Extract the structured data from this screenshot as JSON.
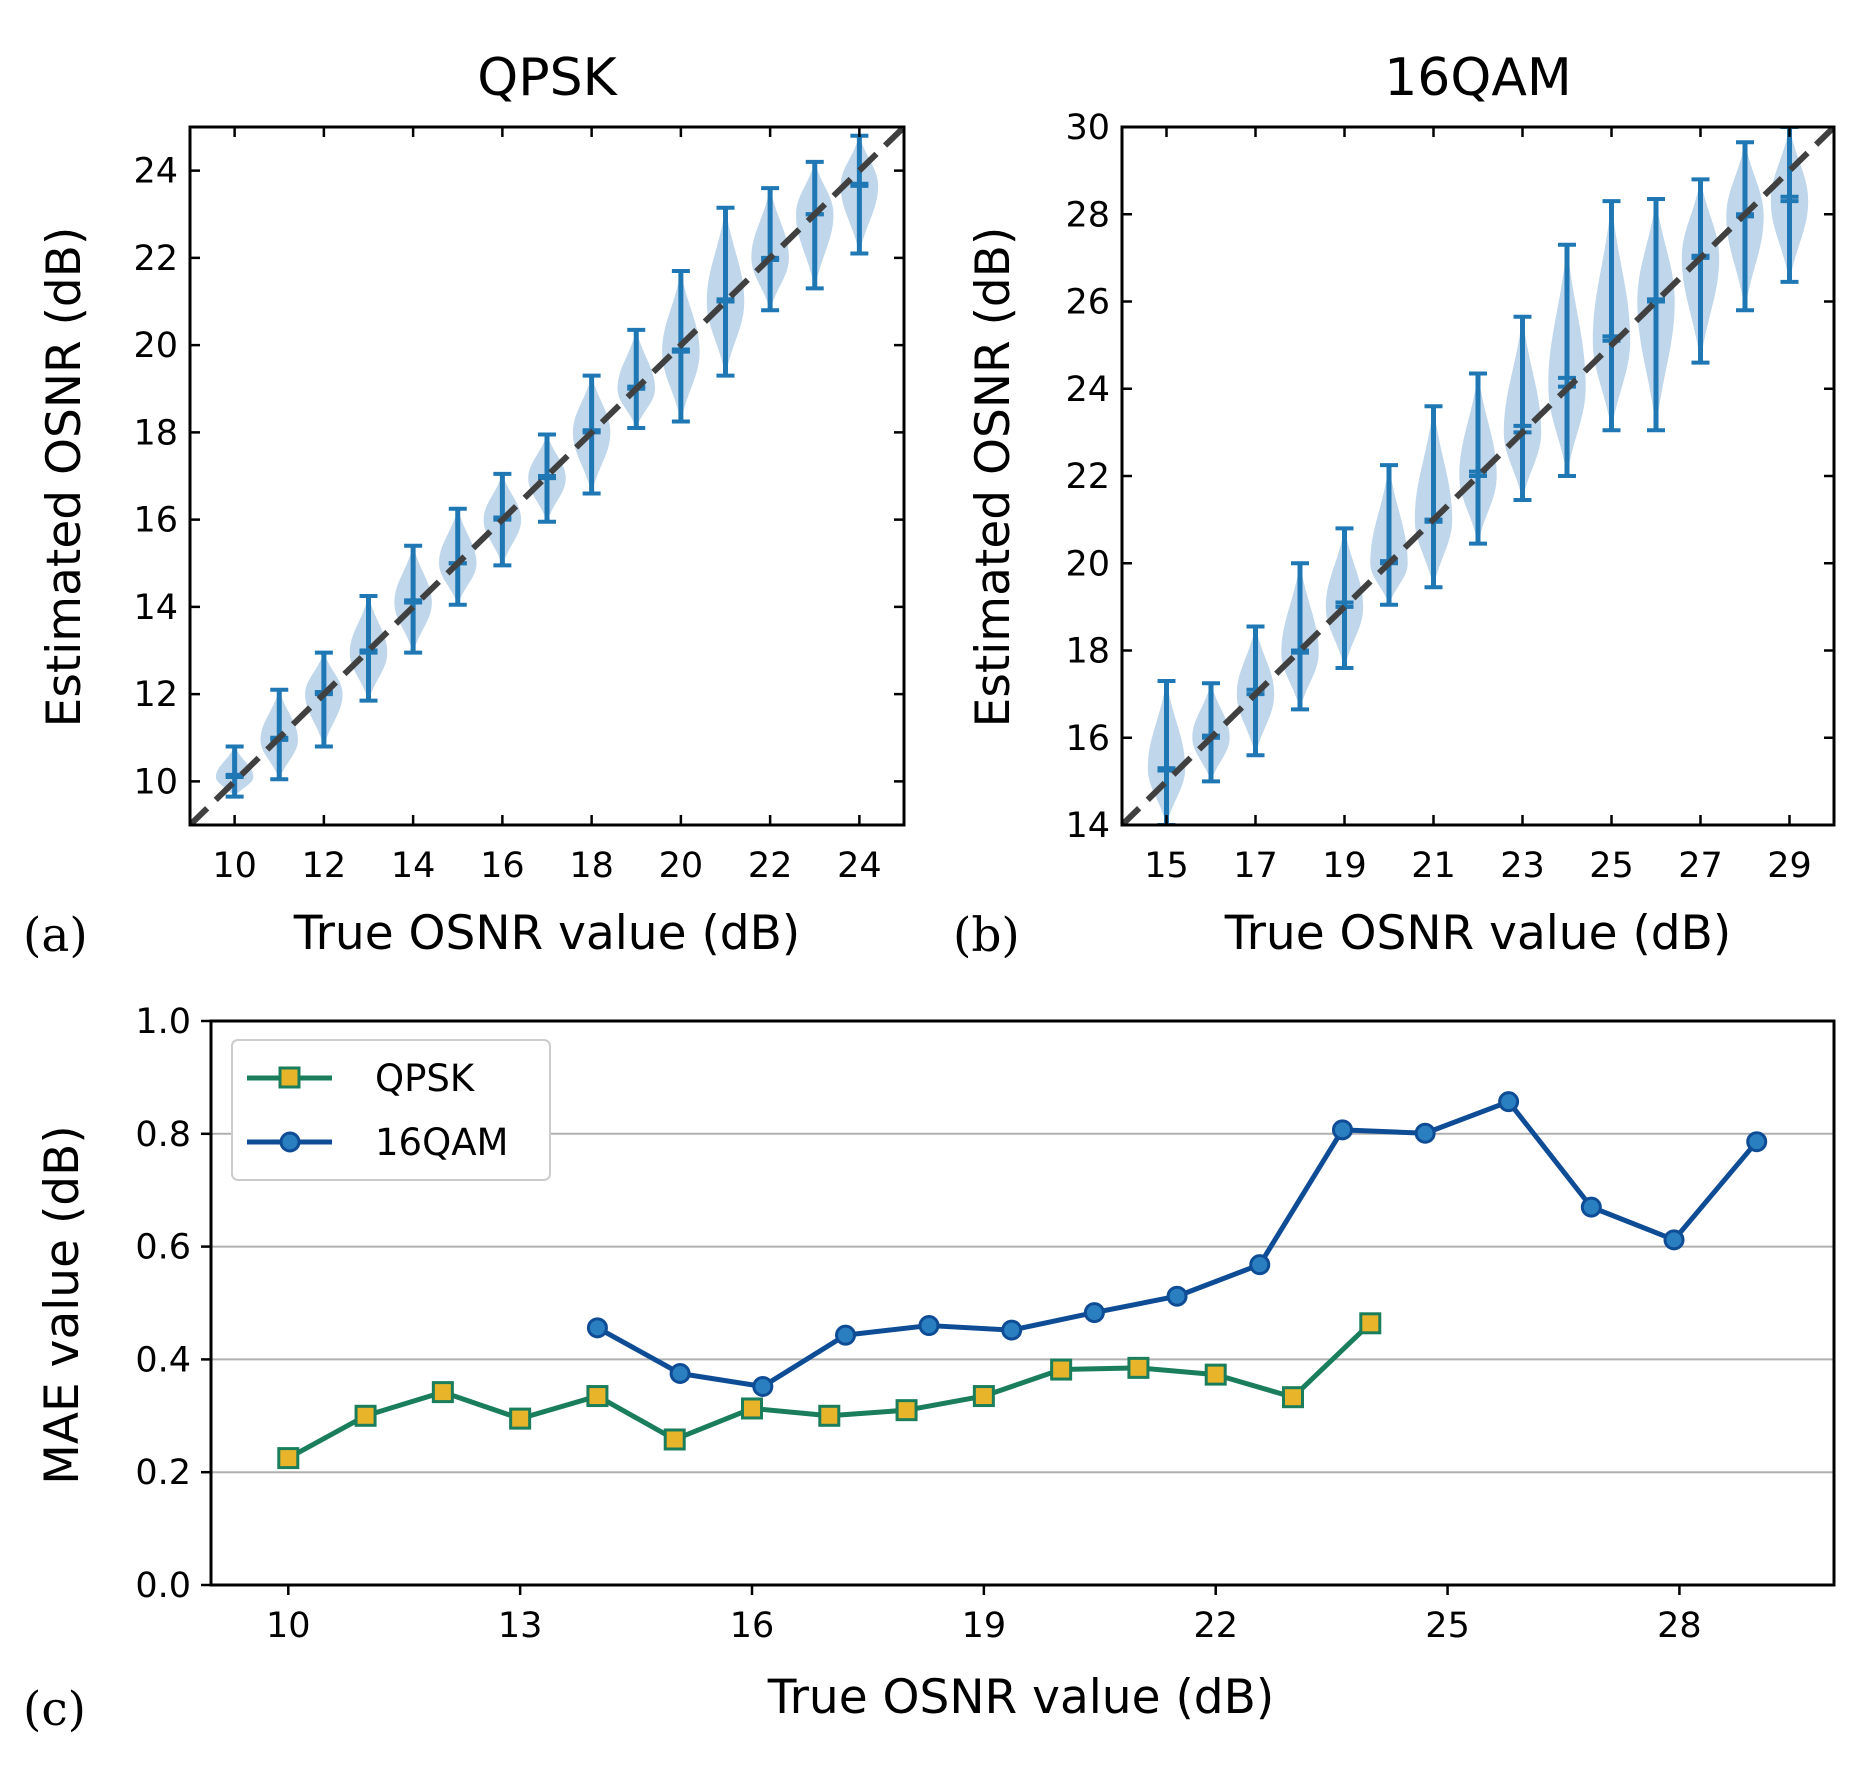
{
  "colors": {
    "violin_fill": "#a9c8e4",
    "errorbar": "#1f77b4",
    "diagonal": "#404040",
    "qpsk_line": "#1a7d5c",
    "qpsk_marker": "#e8b42a",
    "qam_line": "#0f4c96",
    "qam_marker": "#2a7fc0",
    "grid": "#b0b0b0"
  },
  "chart_data": [
    {
      "id": "a",
      "type": "errorbar-violin",
      "panel_label": "(a)",
      "title": "QPSK",
      "xlabel": "True OSNR value (dB)",
      "ylabel": "Estimated OSNR (dB)",
      "xlim": [
        9,
        25
      ],
      "ylim": [
        9,
        25
      ],
      "xticks": [
        10,
        12,
        14,
        16,
        18,
        20,
        22,
        24
      ],
      "yticks": [
        10,
        12,
        14,
        16,
        18,
        20,
        22,
        24
      ],
      "reference_line": "y = x (dashed)",
      "x": [
        10,
        11,
        12,
        13,
        14,
        15,
        16,
        17,
        18,
        19,
        20,
        21,
        22,
        23,
        24
      ],
      "mean": [
        10.15,
        11.0,
        12.05,
        13.0,
        14.15,
        15.0,
        16.05,
        17.0,
        18.05,
        19.05,
        19.9,
        21.05,
        21.95,
        23.0,
        23.7
      ],
      "median": [
        10.1,
        10.95,
        12.0,
        12.95,
        14.1,
        15.0,
        16.0,
        16.95,
        18.0,
        19.0,
        19.85,
        21.0,
        22.0,
        23.0,
        23.65
      ],
      "min": [
        9.65,
        10.05,
        10.8,
        11.85,
        12.95,
        14.05,
        14.95,
        15.95,
        16.6,
        18.1,
        18.25,
        19.3,
        20.8,
        21.3,
        22.1
      ],
      "max": [
        10.8,
        12.1,
        12.95,
        14.25,
        15.4,
        16.25,
        17.05,
        17.95,
        19.3,
        20.35,
        21.7,
        23.15,
        23.6,
        24.2,
        24.8
      ]
    },
    {
      "id": "b",
      "type": "errorbar-violin",
      "panel_label": "(b)",
      "title": "16QAM",
      "xlabel": "True OSNR value (dB)",
      "ylabel": "Estimated OSNR (dB)",
      "xlim": [
        14,
        30
      ],
      "ylim": [
        14,
        30
      ],
      "xticks": [
        15,
        17,
        19,
        21,
        23,
        25,
        27,
        29
      ],
      "yticks": [
        14,
        16,
        18,
        20,
        22,
        24,
        26,
        28,
        30
      ],
      "reference_line": "y = x (dashed)",
      "x": [
        15,
        16,
        17,
        18,
        19,
        20,
        21,
        22,
        23,
        24,
        25,
        26,
        27,
        28,
        29
      ],
      "mean": [
        15.25,
        16.05,
        17.1,
        18.0,
        19.1,
        20.05,
        20.95,
        22.1,
        23.15,
        24.25,
        25.2,
        26.05,
        27.05,
        28.0,
        28.4
      ],
      "median": [
        15.3,
        16.0,
        17.0,
        17.95,
        19.0,
        20.0,
        21.0,
        22.0,
        23.0,
        24.05,
        25.1,
        26.0,
        27.0,
        27.95,
        28.3
      ],
      "min": [
        14.0,
        15.0,
        15.6,
        16.65,
        17.6,
        19.05,
        19.45,
        20.45,
        21.45,
        22.0,
        23.05,
        23.05,
        24.6,
        25.8,
        26.45
      ],
      "max": [
        17.3,
        17.25,
        18.55,
        20.0,
        20.8,
        22.25,
        23.6,
        24.35,
        25.65,
        27.3,
        28.3,
        28.35,
        28.8,
        29.65,
        30.0
      ]
    },
    {
      "id": "c",
      "type": "line",
      "panel_label": "(c)",
      "xlabel": "True OSNR value (dB)",
      "ylabel": "MAE value (dB)",
      "xlim": [
        9.0,
        30.0
      ],
      "ylim": [
        0.0,
        1.0
      ],
      "xticks": [
        10,
        13,
        16,
        19,
        22,
        25,
        28
      ],
      "yticks": [
        0.0,
        0.2,
        0.4,
        0.6,
        0.8,
        1.0
      ],
      "ytick_labels": [
        "0.0",
        "0.2",
        "0.4",
        "0.6",
        "0.8",
        "1.0"
      ],
      "grid": "horizontal",
      "legend_position": "upper-left",
      "series": [
        {
          "name": "QPSK",
          "marker": "square",
          "x": [
            10,
            11,
            12,
            13,
            14,
            15,
            16,
            17,
            18,
            19,
            20,
            21,
            22,
            23,
            24
          ],
          "values": [
            0.225,
            0.3,
            0.342,
            0.295,
            0.335,
            0.258,
            0.313,
            0.3,
            0.31,
            0.335,
            0.382,
            0.385,
            0.373,
            0.333,
            0.464
          ]
        },
        {
          "name": "16QAM",
          "marker": "circle",
          "x": [
            14,
            15.07,
            16.14,
            17.21,
            18.29,
            19.36,
            20.43,
            21.5,
            22.57,
            23.64,
            24.71,
            25.79,
            26.86,
            27.93,
            29.0
          ],
          "values": [
            0.456,
            0.375,
            0.352,
            0.443,
            0.46,
            0.452,
            0.483,
            0.512,
            0.568,
            0.807,
            0.801,
            0.857,
            0.67,
            0.612,
            0.786
          ]
        }
      ]
    }
  ]
}
